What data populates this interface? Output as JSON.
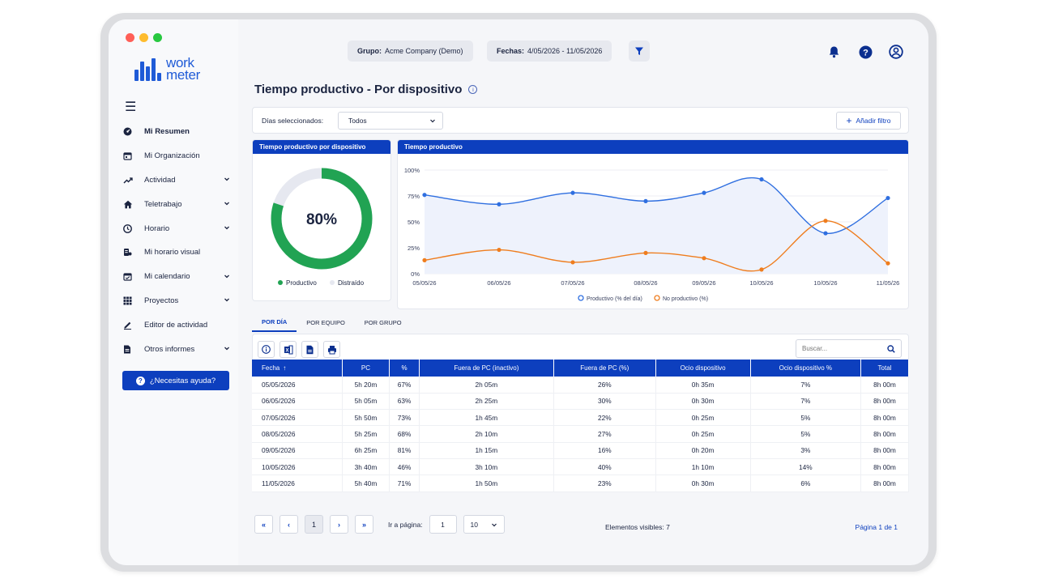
{
  "window_controls": {
    "close_color": "#ff5f57",
    "minimize_color": "#febc2e",
    "maximize_color": "#28c840"
  },
  "brand": {
    "line1": "work",
    "line2": "meter",
    "color": "#1f5bd7"
  },
  "sidebar": {
    "items": [
      {
        "label": "Mi Resumen",
        "icon": "dashboard-icon",
        "active": true,
        "expandable": false
      },
      {
        "label": "Mi Organización",
        "icon": "calendar-org-icon",
        "active": false,
        "expandable": false
      },
      {
        "label": "Actividad",
        "icon": "trend-icon",
        "active": false,
        "expandable": true
      },
      {
        "label": "Teletrabajo",
        "icon": "home-icon",
        "active": false,
        "expandable": true
      },
      {
        "label": "Horario",
        "icon": "clock-icon",
        "active": false,
        "expandable": true
      },
      {
        "label": "Mi horario visual",
        "icon": "schedule-icon",
        "active": false,
        "expandable": false
      },
      {
        "label": "Mi calendario",
        "icon": "calendar-icon",
        "active": false,
        "expandable": true
      },
      {
        "label": "Proyectos",
        "icon": "grid-icon",
        "active": false,
        "expandable": true
      },
      {
        "label": "Editor de actividad",
        "icon": "pencil-icon",
        "active": false,
        "expandable": false
      },
      {
        "label": "Otros informes",
        "icon": "document-icon",
        "active": false,
        "expandable": true
      }
    ],
    "help_label": "¿Necesitas ayuda?"
  },
  "header": {
    "group_label": "Grupo:",
    "group_value": "Acme Company (Demo)",
    "dates_label": "Fechas:",
    "dates_value": "4/05/2026 - 11/05/2026"
  },
  "page": {
    "title": "Tiempo productivo - Por dispositivo"
  },
  "filters": {
    "days_label": "Días seleccionados:",
    "days_value": "Todos",
    "add_filter_label": "Añadir filtro"
  },
  "donut": {
    "title": "Tiempo productivo por dispositivo",
    "value_label": "80%",
    "fraction": 0.8,
    "legend": [
      "Productivo",
      "Distraído"
    ]
  },
  "line_card": {
    "title": "Tiempo productivo"
  },
  "chart_data": {
    "type": "line",
    "title": "Tiempo productivo",
    "x": [
      "05/05/26",
      "06/05/26",
      "07/05/26",
      "08/05/26",
      "09/05/26",
      "10/05/26",
      "10/05/26",
      "11/05/26"
    ],
    "ytick_labels": [
      "100%",
      "75%",
      "50%",
      "25%",
      "0%"
    ],
    "ylim": [
      0,
      100
    ],
    "series": [
      {
        "name": "Productivo (% del día)",
        "color": "#2f6fe0",
        "values": [
          76,
          67,
          78,
          70,
          78,
          91,
          39,
          73
        ]
      },
      {
        "name": "No productivo (%)",
        "color": "#ef7d1e",
        "values": [
          13,
          23,
          11,
          20,
          15,
          4,
          51,
          10
        ]
      }
    ],
    "legend_position": "bottom"
  },
  "tabs": [
    "POR DÍA",
    "POR EQUIPO",
    "POR GRUPO"
  ],
  "search": {
    "placeholder": "Buscar..."
  },
  "table": {
    "headers": [
      "Fecha",
      "PC",
      "%",
      "Fuera de PC (inactivo)",
      "Fuera de PC (%)",
      "Ocio dispositivo",
      "Ocio dispositivo %",
      "Total"
    ],
    "sort_indicator": "↑",
    "rows": [
      [
        "05/05/2026",
        "5h 20m",
        "67%",
        "2h 05m",
        "26%",
        "0h 35m",
        "7%",
        "8h 00m"
      ],
      [
        "06/05/2026",
        "5h 05m",
        "63%",
        "2h 25m",
        "30%",
        "0h 30m",
        "7%",
        "8h 00m"
      ],
      [
        "07/05/2026",
        "5h 50m",
        "73%",
        "1h 45m",
        "22%",
        "0h 25m",
        "5%",
        "8h 00m"
      ],
      [
        "08/05/2026",
        "5h 25m",
        "68%",
        "2h 10m",
        "27%",
        "0h 25m",
        "5%",
        "8h 00m"
      ],
      [
        "09/05/2026",
        "6h 25m",
        "81%",
        "1h 15m",
        "16%",
        "0h 20m",
        "3%",
        "8h 00m"
      ],
      [
        "10/05/2026",
        "3h 40m",
        "46%",
        "3h 10m",
        "40%",
        "1h 10m",
        "14%",
        "8h 00m"
      ],
      [
        "11/05/2026",
        "5h 40m",
        "71%",
        "1h 50m",
        "23%",
        "0h 30m",
        "6%",
        "8h 00m"
      ]
    ]
  },
  "pagination": {
    "first": "«",
    "prev": "‹",
    "current": "1",
    "next": "›",
    "last": "»",
    "go_to_label": "Ir a página:",
    "go_to_value": "1",
    "page_size": "10",
    "visible_label": "Elementos visibles: 7",
    "page_label": "Página 1 de 1"
  },
  "colors": {
    "primary": "#0d3fbe",
    "productive": "#21a353",
    "distracted": "#e6e8f0"
  }
}
